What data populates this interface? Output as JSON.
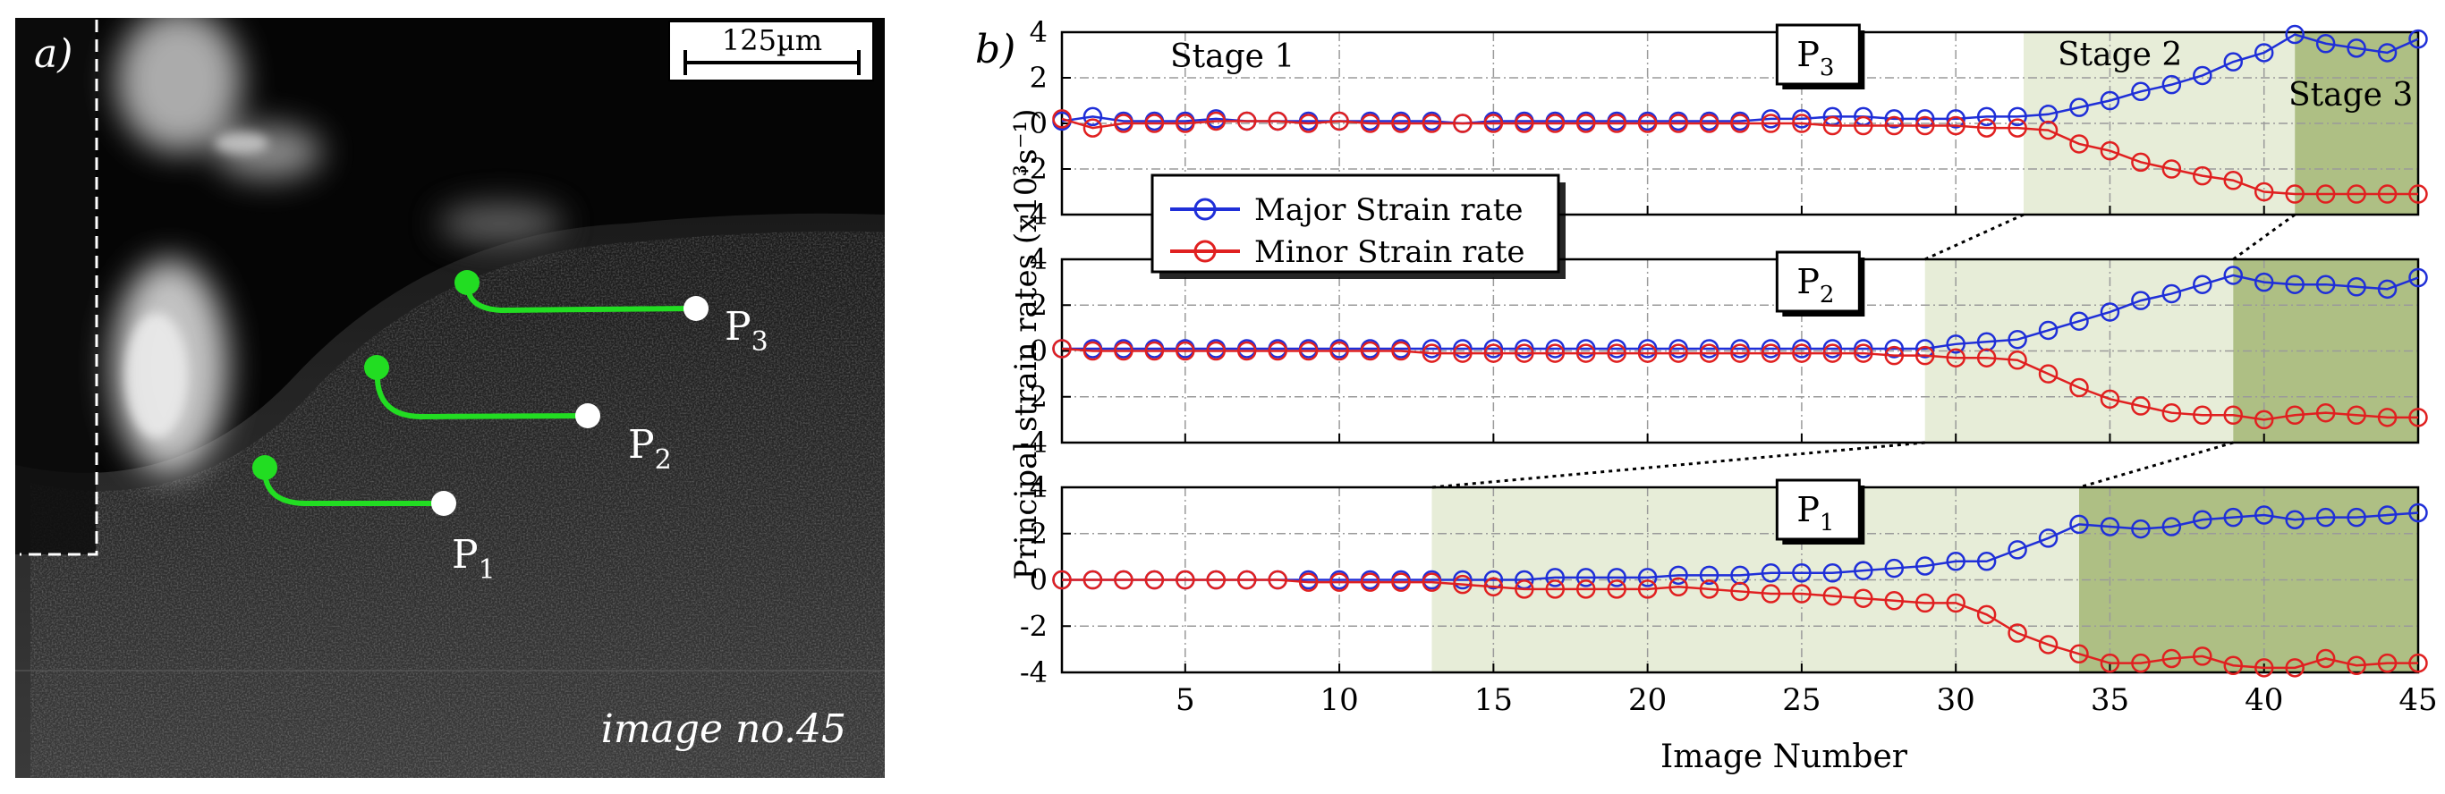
{
  "panel_a": {
    "label": "a)",
    "scale_bar": "125µm",
    "caption": "image no.45",
    "points": [
      {
        "name": "P",
        "sub": "1"
      },
      {
        "name": "P",
        "sub": "2"
      },
      {
        "name": "P",
        "sub": "3"
      }
    ],
    "colors": {
      "track": "#22dd22",
      "point": "#ffffff"
    }
  },
  "panel_b": {
    "label": "b)",
    "ylabel": "Principal strain rates (x10³s⁻¹)",
    "xlabel": "Image Number",
    "legend": [
      {
        "label": "Major Strain rate",
        "color": "#1f2fd8"
      },
      {
        "label": "Minor Strain rate",
        "color": "#e02020"
      }
    ],
    "stages": {
      "s1": "Stage 1",
      "s2": "Stage 2",
      "s3": "Stage 3"
    },
    "colors": {
      "stage2": "#e7edd8",
      "stage3": "#aebf84"
    }
  },
  "chart_data": [
    {
      "type": "line",
      "title": "P3",
      "title_main": "P",
      "title_sub": "3",
      "xlim": [
        1,
        45
      ],
      "ylim": [
        -4,
        4
      ],
      "xticks": [
        5,
        10,
        15,
        20,
        25,
        30,
        35,
        40,
        45
      ],
      "yticks": [
        4,
        2,
        0,
        -2,
        -4
      ],
      "stage2_range": [
        32.2,
        41
      ],
      "stage3_range": [
        41,
        45
      ],
      "x": [
        1,
        2,
        3,
        4,
        5,
        6,
        7,
        8,
        9,
        10,
        11,
        12,
        13,
        14,
        15,
        16,
        17,
        18,
        19,
        20,
        21,
        22,
        23,
        24,
        25,
        26,
        27,
        28,
        29,
        30,
        31,
        32,
        33,
        34,
        35,
        36,
        37,
        38,
        39,
        40,
        41,
        42,
        43,
        44,
        45
      ],
      "series": [
        {
          "name": "Major Strain rate",
          "color": "#1f2fd8",
          "values": [
            0.1,
            0.3,
            0.1,
            0.1,
            0.1,
            0.2,
            0.1,
            0.1,
            0.1,
            0.1,
            0.1,
            0.1,
            0.1,
            0.0,
            0.1,
            0.1,
            0.1,
            0.1,
            0.1,
            0.1,
            0.1,
            0.1,
            0.1,
            0.2,
            0.2,
            0.3,
            0.3,
            0.2,
            0.2,
            0.2,
            0.3,
            0.3,
            0.4,
            0.7,
            1.0,
            1.4,
            1.7,
            2.1,
            2.7,
            3.1,
            3.9,
            3.5,
            3.3,
            3.1,
            3.7
          ]
        },
        {
          "name": "Minor Strain rate",
          "color": "#e02020",
          "values": [
            0.2,
            -0.2,
            0.0,
            0.0,
            0.0,
            0.1,
            0.1,
            0.1,
            0.0,
            0.1,
            0.0,
            0.0,
            0.0,
            0.0,
            0.0,
            0.0,
            0.0,
            0.0,
            0.0,
            0.0,
            0.0,
            0.0,
            0.0,
            0.0,
            0.0,
            -0.1,
            -0.1,
            -0.1,
            -0.1,
            -0.1,
            -0.2,
            -0.2,
            -0.3,
            -0.9,
            -1.2,
            -1.7,
            -2.0,
            -2.3,
            -2.5,
            -3.0,
            -3.1,
            -3.1,
            -3.1,
            -3.1,
            -3.1
          ]
        }
      ]
    },
    {
      "type": "line",
      "title": "P2",
      "title_main": "P",
      "title_sub": "2",
      "xlim": [
        1,
        45
      ],
      "ylim": [
        -4,
        4
      ],
      "xticks": [
        5,
        10,
        15,
        20,
        25,
        30,
        35,
        40,
        45
      ],
      "yticks": [
        4,
        2,
        0,
        -2,
        -4
      ],
      "stage2_range": [
        29,
        39
      ],
      "stage3_range": [
        39,
        45
      ],
      "x": [
        1,
        2,
        3,
        4,
        5,
        6,
        7,
        8,
        9,
        10,
        11,
        12,
        13,
        14,
        15,
        16,
        17,
        18,
        19,
        20,
        21,
        22,
        23,
        24,
        25,
        26,
        27,
        28,
        29,
        30,
        31,
        32,
        33,
        34,
        35,
        36,
        37,
        38,
        39,
        40,
        41,
        42,
        43,
        44,
        45
      ],
      "series": [
        {
          "name": "Major Strain rate",
          "color": "#1f2fd8",
          "values": [
            0.1,
            0.1,
            0.1,
            0.1,
            0.1,
            0.1,
            0.1,
            0.1,
            0.1,
            0.1,
            0.1,
            0.1,
            0.1,
            0.1,
            0.1,
            0.1,
            0.1,
            0.1,
            0.1,
            0.1,
            0.1,
            0.1,
            0.1,
            0.1,
            0.1,
            0.1,
            0.1,
            0.1,
            0.1,
            0.3,
            0.4,
            0.5,
            0.9,
            1.3,
            1.7,
            2.2,
            2.5,
            2.9,
            3.3,
            3.0,
            2.9,
            2.9,
            2.8,
            2.7,
            3.2
          ]
        },
        {
          "name": "Minor Strain rate",
          "color": "#e02020",
          "values": [
            0.1,
            0.0,
            0.0,
            0.0,
            0.0,
            0.0,
            0.0,
            0.0,
            0.0,
            0.0,
            0.0,
            0.0,
            -0.1,
            -0.1,
            -0.1,
            -0.1,
            -0.1,
            -0.1,
            -0.1,
            -0.1,
            -0.1,
            -0.1,
            -0.1,
            -0.1,
            -0.1,
            -0.1,
            -0.1,
            -0.2,
            -0.2,
            -0.3,
            -0.3,
            -0.4,
            -1.0,
            -1.6,
            -2.1,
            -2.4,
            -2.7,
            -2.8,
            -2.8,
            -3.0,
            -2.8,
            -2.7,
            -2.8,
            -2.9,
            -2.9
          ]
        }
      ]
    },
    {
      "type": "line",
      "title": "P1",
      "title_main": "P",
      "title_sub": "1",
      "xlim": [
        1,
        45
      ],
      "ylim": [
        -4,
        4
      ],
      "xticks": [
        5,
        10,
        15,
        20,
        25,
        30,
        35,
        40,
        45
      ],
      "yticks": [
        4,
        2,
        0,
        -2,
        -4
      ],
      "stage2_range": [
        13,
        34
      ],
      "stage3_range": [
        34,
        45
      ],
      "x": [
        1,
        2,
        3,
        4,
        5,
        6,
        7,
        8,
        9,
        10,
        11,
        12,
        13,
        14,
        15,
        16,
        17,
        18,
        19,
        20,
        21,
        22,
        23,
        24,
        25,
        26,
        27,
        28,
        29,
        30,
        31,
        32,
        33,
        34,
        35,
        36,
        37,
        38,
        39,
        40,
        41,
        42,
        43,
        44,
        45
      ],
      "series": [
        {
          "name": "Major Strain rate",
          "color": "#1f2fd8",
          "values": [
            0.0,
            0.0,
            0.0,
            0.0,
            0.0,
            0.0,
            0.0,
            0.0,
            0.0,
            0.0,
            0.0,
            0.0,
            0.0,
            0.0,
            0.0,
            0.0,
            0.1,
            0.1,
            0.1,
            0.1,
            0.2,
            0.2,
            0.2,
            0.3,
            0.3,
            0.3,
            0.4,
            0.5,
            0.6,
            0.8,
            0.8,
            1.3,
            1.8,
            2.4,
            2.3,
            2.2,
            2.3,
            2.6,
            2.7,
            2.8,
            2.6,
            2.7,
            2.7,
            2.8,
            2.9
          ]
        },
        {
          "name": "Minor Strain rate",
          "color": "#e02020",
          "values": [
            0.0,
            0.0,
            0.0,
            0.0,
            0.0,
            0.0,
            0.0,
            0.0,
            -0.1,
            -0.1,
            -0.1,
            -0.1,
            -0.1,
            -0.2,
            -0.3,
            -0.4,
            -0.4,
            -0.4,
            -0.4,
            -0.4,
            -0.3,
            -0.4,
            -0.5,
            -0.6,
            -0.6,
            -0.7,
            -0.8,
            -0.9,
            -1.0,
            -1.0,
            -1.5,
            -2.3,
            -2.8,
            -3.2,
            -3.6,
            -3.6,
            -3.4,
            -3.3,
            -3.7,
            -3.8,
            -3.8,
            -3.4,
            -3.7,
            -3.6,
            -3.6
          ]
        }
      ]
    }
  ]
}
